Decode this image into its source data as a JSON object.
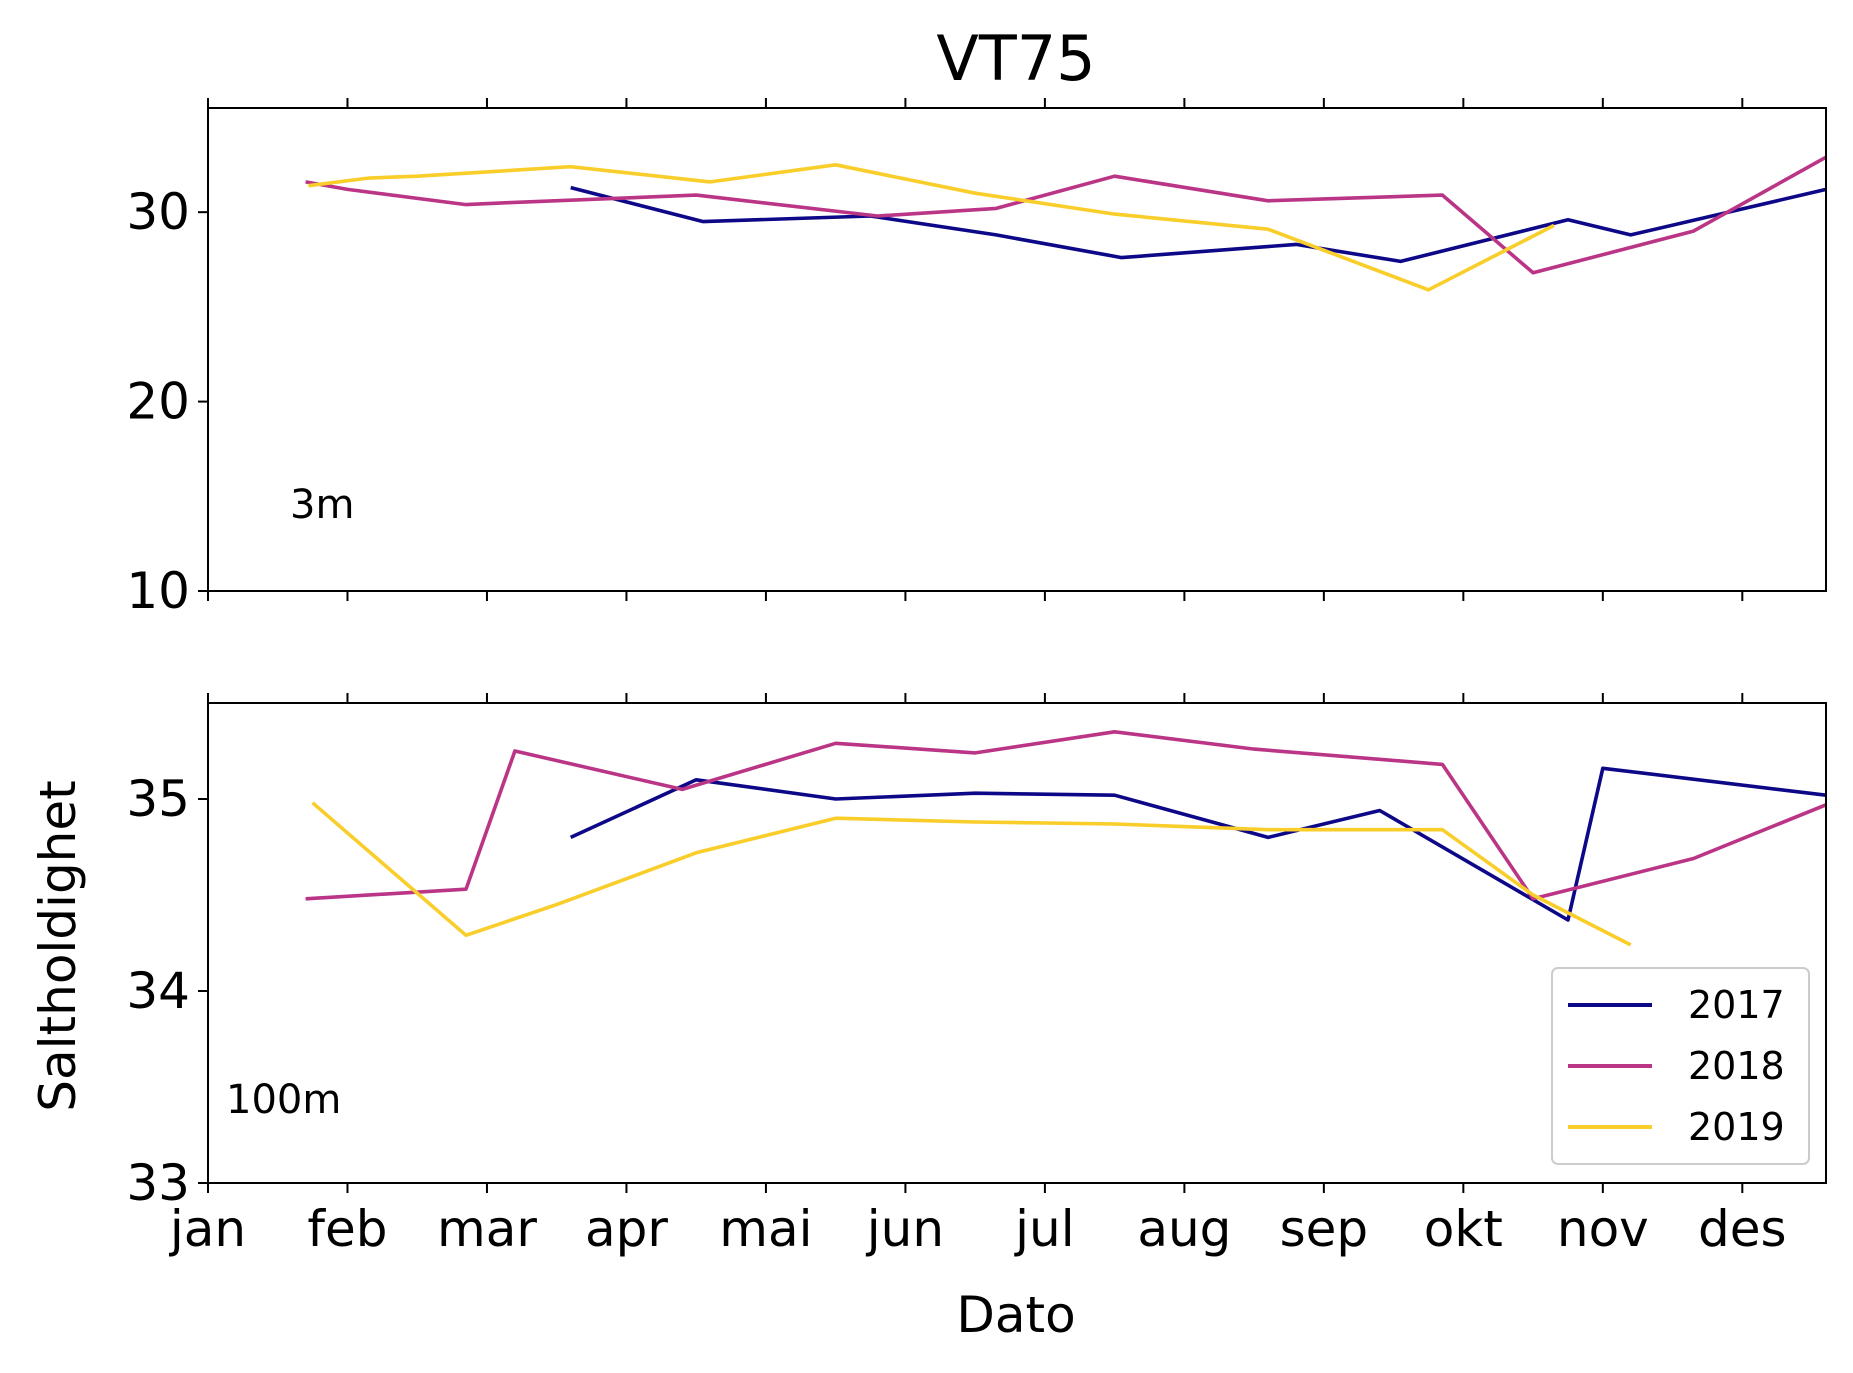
{
  "title": "VT75",
  "chart_data": [
    {
      "type": "line",
      "panel_label": "3m",
      "title": "",
      "xlabel": "",
      "ylabel": "",
      "xlim": [
        1,
        12.6
      ],
      "ylim": [
        10,
        35.5
      ],
      "yticks": [
        10,
        20,
        30
      ],
      "yticklabels": [
        "10",
        "20",
        "30"
      ],
      "xticks": [
        1,
        2,
        3,
        4,
        5,
        6,
        7,
        8,
        9,
        10,
        11,
        12
      ],
      "xticklabels": [],
      "grid": false,
      "series": [
        {
          "name": "2017",
          "color": "#0d0887",
          "x": [
            3.6,
            4.55,
            5.75,
            6.65,
            7.55,
            8.8,
            9.55,
            10.75,
            11.2,
            12.6
          ],
          "y": [
            31.3,
            29.5,
            29.8,
            28.8,
            27.6,
            28.3,
            27.4,
            29.6,
            28.8,
            31.2
          ]
        },
        {
          "name": "2018",
          "color": "#bb3587",
          "x": [
            1.7,
            2.0,
            2.85,
            3.15,
            4.5,
            5.8,
            6.65,
            7.5,
            8.6,
            9.85,
            10.5,
            11.65,
            12.6
          ],
          "y": [
            31.6,
            31.2,
            30.4,
            30.5,
            30.9,
            29.8,
            30.2,
            31.9,
            30.6,
            30.9,
            26.8,
            29.0,
            32.9
          ]
        },
        {
          "name": "2019",
          "color": "#f9cd2a",
          "x": [
            1.72,
            2.15,
            2.5,
            3.6,
            4.6,
            5.5,
            6.5,
            7.5,
            8.6,
            9.75,
            10.65
          ],
          "y": [
            31.4,
            31.8,
            31.9,
            32.4,
            31.6,
            32.5,
            31.0,
            29.9,
            29.1,
            25.9,
            29.3
          ]
        }
      ]
    },
    {
      "type": "line",
      "panel_label": "100m",
      "title": "",
      "xlabel": "Dato",
      "ylabel": "Saltholdighet",
      "xlim": [
        1,
        12.6
      ],
      "ylim": [
        33,
        35.5
      ],
      "yticks": [
        33,
        34,
        35
      ],
      "yticklabels": [
        "33",
        "34",
        "35"
      ],
      "xticks": [
        1,
        2,
        3,
        4,
        5,
        6,
        7,
        8,
        9,
        10,
        11,
        12
      ],
      "xticklabels": [
        "jan",
        "feb",
        "mar",
        "apr",
        "mai",
        "jun",
        "jul",
        "aug",
        "sep",
        "okt",
        "nov",
        "des"
      ],
      "grid": false,
      "legend": "lower-right",
      "series": [
        {
          "name": "2017",
          "color": "#0d0887",
          "x": [
            3.6,
            4.5,
            5.5,
            6.5,
            7.5,
            8.6,
            9.4,
            10.75,
            11.0,
            12.6
          ],
          "y": [
            34.8,
            35.1,
            35.0,
            35.03,
            35.02,
            34.8,
            34.94,
            34.37,
            35.16,
            35.02
          ]
        },
        {
          "name": "2018",
          "color": "#bb3587",
          "x": [
            1.7,
            2.85,
            3.2,
            4.4,
            5.5,
            6.5,
            7.5,
            8.5,
            9.85,
            10.5,
            11.65,
            12.6
          ],
          "y": [
            34.48,
            34.53,
            35.25,
            35.05,
            35.29,
            35.24,
            35.35,
            35.26,
            35.18,
            34.48,
            34.69,
            34.97
          ]
        },
        {
          "name": "2019",
          "color": "#f9cd2a",
          "x": [
            1.75,
            2.85,
            3.5,
            4.5,
            5.5,
            6.5,
            7.5,
            8.6,
            9.85,
            10.5,
            11.2
          ],
          "y": [
            34.98,
            34.29,
            34.45,
            34.72,
            34.9,
            34.88,
            34.87,
            34.84,
            34.84,
            34.5,
            34.24
          ]
        }
      ]
    }
  ]
}
